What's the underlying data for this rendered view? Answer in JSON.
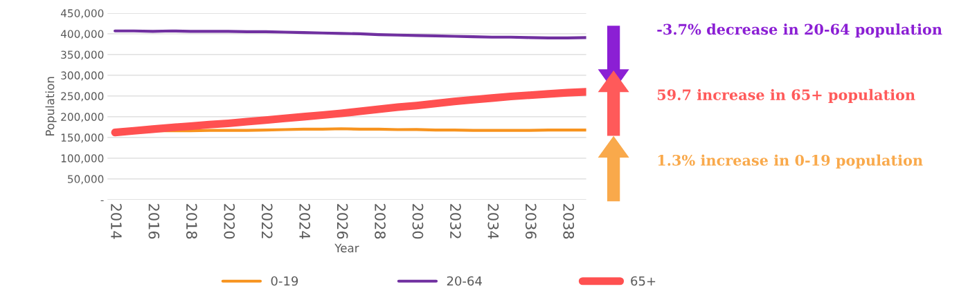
{
  "chart_data": {
    "type": "line",
    "xlabel": "Year",
    "ylabel": "Population",
    "x": [
      2014,
      2015,
      2016,
      2017,
      2018,
      2019,
      2020,
      2021,
      2022,
      2023,
      2024,
      2025,
      2026,
      2027,
      2028,
      2029,
      2030,
      2031,
      2032,
      2033,
      2034,
      2035,
      2036,
      2037,
      2038,
      2039
    ],
    "series": [
      {
        "name": "0-19",
        "color": "#f7931e",
        "values": [
          162000,
          165000,
          166000,
          166000,
          166000,
          167000,
          167000,
          167000,
          168000,
          169000,
          170000,
          170000,
          171000,
          170000,
          170000,
          169000,
          169000,
          168000,
          168000,
          167000,
          167000,
          167000,
          167000,
          168000,
          168000,
          168000
        ]
      },
      {
        "name": "20-64",
        "color": "#7030a0",
        "values": [
          407000,
          407000,
          406000,
          407000,
          406000,
          406000,
          406000,
          405000,
          405000,
          404000,
          403000,
          402000,
          401000,
          400000,
          398000,
          397000,
          396000,
          395000,
          394000,
          393000,
          392000,
          392000,
          391000,
          390000,
          390000,
          391000
        ]
      },
      {
        "name": "65+",
        "color": "#ff5050",
        "values": [
          162000,
          166000,
          170000,
          174000,
          177000,
          181000,
          184000,
          188000,
          192000,
          196000,
          200000,
          204000,
          208000,
          213000,
          218000,
          223000,
          227000,
          232000,
          237000,
          241000,
          245000,
          249000,
          252000,
          255000,
          258000,
          260000
        ]
      }
    ],
    "xlim": [
      2013.6,
      2039
    ],
    "xticks": [
      2014,
      2016,
      2018,
      2020,
      2022,
      2024,
      2026,
      2028,
      2030,
      2032,
      2034,
      2036,
      2038
    ],
    "ylim": [
      0,
      450000
    ],
    "yticks": [
      {
        "value": 0,
        "label": "-"
      },
      {
        "value": 50000,
        "label": "50,000"
      },
      {
        "value": 100000,
        "label": "100,000"
      },
      {
        "value": 150000,
        "label": "150,000"
      },
      {
        "value": 200000,
        "label": "200,000"
      },
      {
        "value": 250000,
        "label": "250,000"
      },
      {
        "value": 300000,
        "label": "300,000"
      },
      {
        "value": 350000,
        "label": "350,000"
      },
      {
        "value": 400000,
        "label": "400,000"
      },
      {
        "value": 450000,
        "label": "450,000"
      }
    ],
    "grid": "y",
    "legend": "bottom",
    "marker": "none",
    "line_style": "solid",
    "annotations": [
      "-3.7% decrease in 20-64 population",
      "59.7 increase in 65+ population",
      "1.3% increase in 0-19 population"
    ]
  }
}
